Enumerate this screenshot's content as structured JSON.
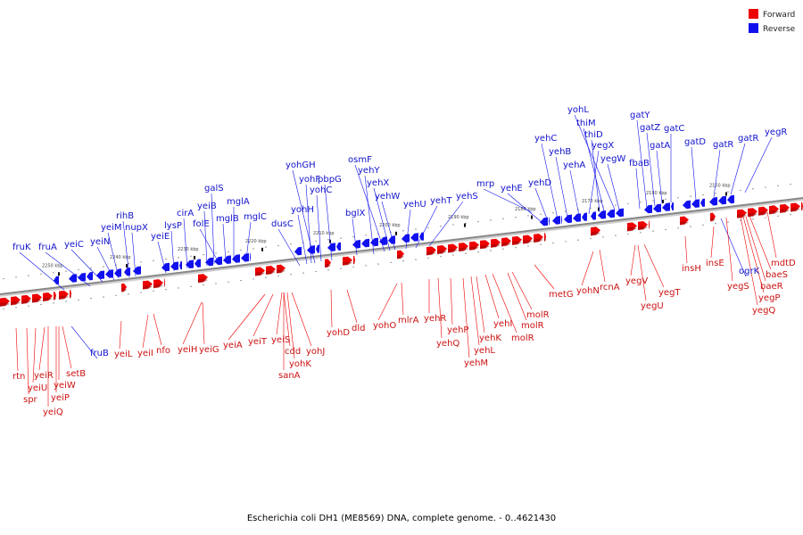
{
  "caption": "Escherichia coli DH1 (ME8569) DNA, complete genome. - 0..4621430",
  "legend": [
    {
      "label": "Forward",
      "color": "#ee0000"
    },
    {
      "label": "Reverse",
      "color": "#1111ee"
    }
  ],
  "colors": {
    "forward": "#ee0000",
    "reverse": "#1111ee",
    "backbone": "#888888"
  },
  "ticks": [
    "2150 kbp",
    "2160 kbp",
    "2170 kbp",
    "2180 kbp",
    "2190 kbp",
    "2200 kbp",
    "2210 kbp",
    "2220 kbp",
    "2230 kbp",
    "2240 kbp",
    "2250 kbp"
  ],
  "reverse_labels": [
    "fruK",
    "fruA",
    "yeiC",
    "yeiN",
    "yeiM",
    "rihB",
    "nupX",
    "yeiE",
    "lysP",
    "cirA",
    "yeiB",
    "galS",
    "folE",
    "mglB",
    "mglA",
    "mglC",
    "dusC",
    "yohH",
    "yohF",
    "yohGH",
    "yohC",
    "pbpG",
    "bglX",
    "yehY",
    "osmF",
    "yehX",
    "yehW",
    "yehU",
    "yehT",
    "yehS",
    "mrp",
    "yehE",
    "yehD",
    "yehC",
    "yehB",
    "yohL",
    "thiM",
    "thiD",
    "yegX",
    "yehA",
    "yegW",
    "fbaB",
    "gatY",
    "gatZ",
    "gatA",
    "gatC",
    "gatD",
    "gatR",
    "gatR",
    "yegR",
    "ogrK",
    "fruB"
  ],
  "forward_labels": [
    "rtn",
    "spr",
    "yeiU",
    "yeiR",
    "yeiQ",
    "yeiP",
    "yeiW",
    "setB",
    "yeiL",
    "yeiI",
    "nfo",
    "yeiH",
    "yeiG",
    "yeiA",
    "yeiT",
    "yeiS",
    "cdd",
    "sanA",
    "yohK",
    "yohJ",
    "yohD",
    "dld",
    "yohO",
    "mlrA",
    "yehR",
    "yehQ",
    "yehP",
    "yehM",
    "yehL",
    "yehK",
    "yehI",
    "molR",
    "molR",
    "molR",
    "metG",
    "yohN",
    "rcnA",
    "yegV",
    "yegU",
    "yegT",
    "insH",
    "insE",
    "yegS",
    "baeS",
    "baeR",
    "yegP",
    "yegQ",
    "mdtD"
  ]
}
